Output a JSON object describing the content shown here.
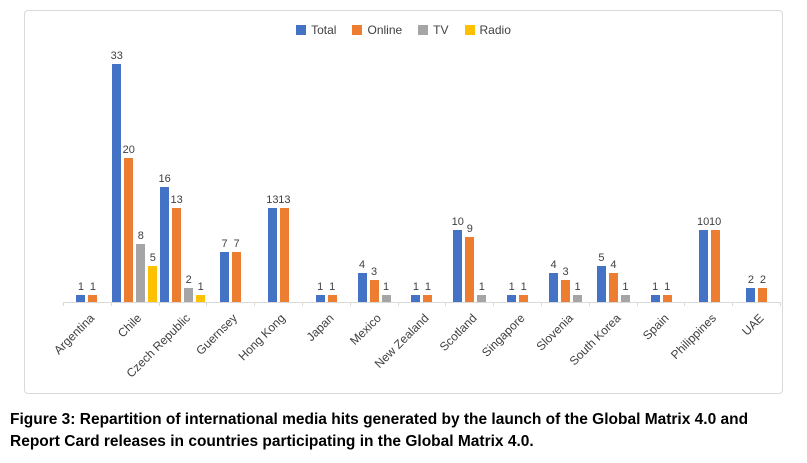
{
  "chart_data": {
    "type": "bar",
    "title": "",
    "xlabel": "",
    "ylabel": "",
    "ylim": [
      0,
      35
    ],
    "grid": false,
    "legend_position": "top",
    "data_labels": true,
    "categories": [
      "Argentina",
      "Chile",
      "Czech Republic",
      "Guernsey",
      "Hong Kong",
      "Japan",
      "Mexico",
      "New Zealand",
      "Scotland",
      "Singapore",
      "Slovenia",
      "South Korea",
      "Spain",
      "Philippines",
      "UAE"
    ],
    "series": [
      {
        "name": "Total",
        "color": "#4472C4",
        "values": [
          1,
          33,
          16,
          7,
          13,
          1,
          4,
          1,
          10,
          1,
          4,
          5,
          1,
          10,
          2
        ]
      },
      {
        "name": "Online",
        "color": "#ED7D31",
        "values": [
          1,
          20,
          13,
          7,
          13,
          1,
          3,
          1,
          9,
          1,
          3,
          4,
          1,
          10,
          2
        ]
      },
      {
        "name": "TV",
        "color": "#A5A5A5",
        "values": [
          0,
          8,
          2,
          0,
          0,
          0,
          1,
          0,
          1,
          0,
          1,
          1,
          0,
          0,
          0
        ]
      },
      {
        "name": "Radio",
        "color": "#FFC000",
        "values": [
          0,
          5,
          1,
          0,
          0,
          0,
          0,
          0,
          0,
          0,
          0,
          0,
          0,
          0,
          0
        ]
      }
    ],
    "colors": {
      "axis_line": "#D9D9D9",
      "label_text": "#404040"
    }
  },
  "caption": {
    "lines": [
      "Figure 3: Repartition of international media hits generated by the launch of the Global Matrix 4.0 and",
      "Report Card releases in countries participating in the Global Matrix 4.0."
    ]
  }
}
